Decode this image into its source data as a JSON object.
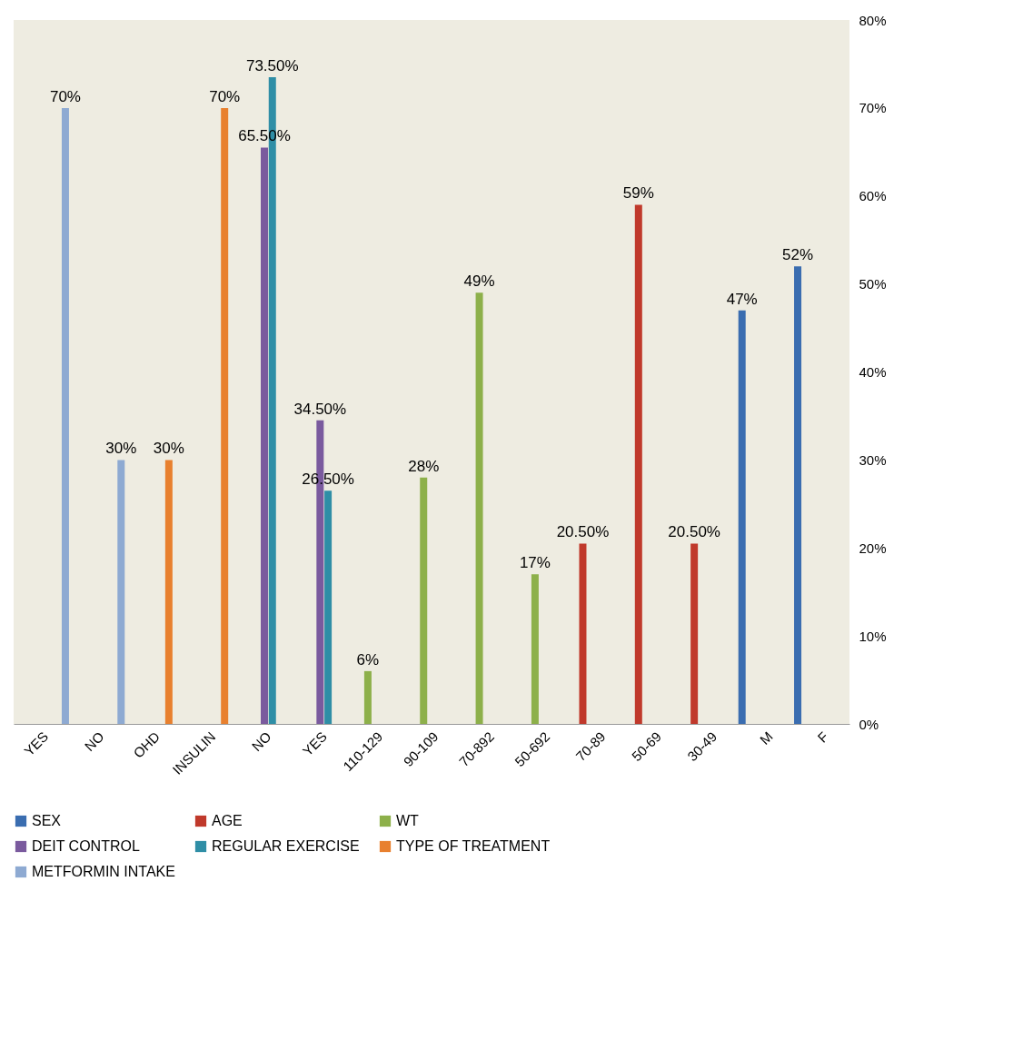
{
  "chart_data": {
    "type": "bar",
    "categories": [
      "YES",
      "NO",
      "OHD",
      "INSULIN",
      "NO",
      "YES",
      "110-129",
      "90-109",
      "70-892",
      "50-692",
      "70-89",
      "50-69",
      "30-49",
      "M",
      "F"
    ],
    "series": [
      {
        "name": "SEX",
        "color": "#3a6db0",
        "values": [
          null,
          null,
          null,
          null,
          null,
          null,
          null,
          null,
          null,
          null,
          null,
          null,
          null,
          47,
          52
        ],
        "value_labels": [
          null,
          null,
          null,
          null,
          null,
          null,
          null,
          null,
          null,
          null,
          null,
          null,
          null,
          "47%",
          "52%"
        ]
      },
      {
        "name": "AGE",
        "color": "#c0392b",
        "values": [
          null,
          null,
          null,
          null,
          null,
          null,
          null,
          null,
          null,
          null,
          20.5,
          59,
          20.5,
          null,
          null
        ],
        "value_labels": [
          null,
          null,
          null,
          null,
          null,
          null,
          null,
          null,
          null,
          null,
          "20.50%",
          "59%",
          "20.50%",
          null,
          null
        ]
      },
      {
        "name": "WT",
        "color": "#8db04a",
        "values": [
          null,
          null,
          null,
          null,
          null,
          null,
          6,
          28,
          49,
          17,
          null,
          null,
          null,
          null,
          null
        ],
        "value_labels": [
          null,
          null,
          null,
          null,
          null,
          null,
          "6%",
          "28%",
          "49%",
          "17%",
          null,
          null,
          null,
          null,
          null
        ]
      },
      {
        "name": "DEIT CONTROL",
        "color": "#7a5a9e",
        "values": [
          null,
          null,
          null,
          null,
          65.5,
          34.5,
          null,
          null,
          null,
          null,
          null,
          null,
          null,
          null,
          null
        ],
        "value_labels": [
          null,
          null,
          null,
          null,
          "65.50%",
          "34.50%",
          null,
          null,
          null,
          null,
          null,
          null,
          null,
          null,
          null
        ]
      },
      {
        "name": "REGULAR EXERCISE",
        "color": "#2f8ea6",
        "values": [
          null,
          null,
          null,
          null,
          73.5,
          26.5,
          null,
          null,
          null,
          null,
          null,
          null,
          null,
          null,
          null
        ],
        "value_labels": [
          null,
          null,
          null,
          null,
          "73.50%",
          "26.50%",
          null,
          null,
          null,
          null,
          null,
          null,
          null,
          null,
          null
        ]
      },
      {
        "name": "TYPE OF TREATMENT",
        "color": "#e8802e",
        "values": [
          null,
          null,
          30,
          70,
          null,
          null,
          null,
          null,
          null,
          null,
          null,
          null,
          null,
          null,
          null
        ],
        "value_labels": [
          null,
          null,
          "30%",
          "70%",
          null,
          null,
          null,
          null,
          null,
          null,
          null,
          null,
          null,
          null,
          null
        ]
      },
      {
        "name": "METFORMIN INTAKE",
        "color": "#8eaad2",
        "values": [
          70,
          30,
          null,
          null,
          null,
          null,
          null,
          null,
          null,
          null,
          null,
          null,
          null,
          null,
          null
        ],
        "value_labels": [
          "70%",
          "30%",
          null,
          null,
          null,
          null,
          null,
          null,
          null,
          null,
          null,
          null,
          null,
          null,
          null
        ]
      }
    ],
    "ylim": [
      0,
      80
    ],
    "yticks": [
      {
        "value": 0,
        "label": "0%"
      },
      {
        "value": 10,
        "label": "10%"
      },
      {
        "value": 20,
        "label": "20%"
      },
      {
        "value": 30,
        "label": "30%"
      },
      {
        "value": 40,
        "label": "40%"
      },
      {
        "value": 50,
        "label": "50%"
      },
      {
        "value": 60,
        "label": "60%"
      },
      {
        "value": 70,
        "label": "70%"
      },
      {
        "value": 80,
        "label": "80%"
      }
    ],
    "grid": false,
    "legend": "bottom"
  }
}
